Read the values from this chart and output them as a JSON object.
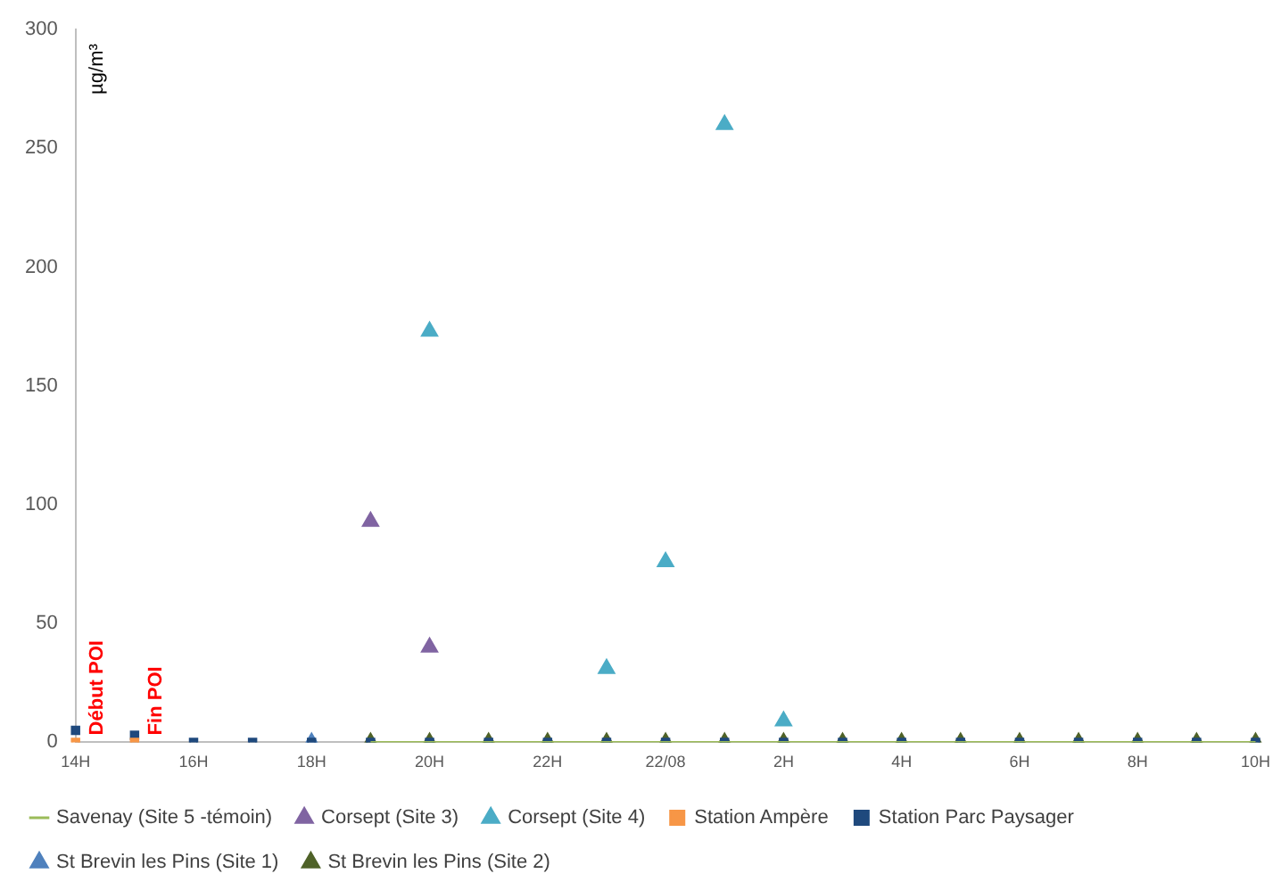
{
  "chart_data": {
    "type": "scatter",
    "ylabel": "µg/m³",
    "categories": [
      "14H",
      null,
      "16H",
      null,
      "18H",
      null,
      "20H",
      null,
      "22H",
      null,
      "22/08",
      null,
      "2H",
      null,
      "4H",
      null,
      "6H",
      null,
      "8H",
      null,
      "10H"
    ],
    "ylim": [
      0,
      300
    ],
    "yticks": [
      0,
      50,
      100,
      150,
      200,
      250,
      300
    ],
    "grid": false,
    "legend": "bottom",
    "annotations": [
      "Début POI",
      "Fin POI"
    ],
    "series": [
      {
        "name": "Savenay (Site 5 -témoin)",
        "type": "line",
        "marker": "none",
        "color": "#9bbb59",
        "values": [
          null,
          null,
          null,
          null,
          null,
          0,
          0,
          0,
          0,
          0,
          0,
          0,
          0,
          0,
          0,
          0,
          0,
          0,
          0,
          0,
          0
        ]
      },
      {
        "name": "Corsept (Site 3)",
        "marker": "triangle",
        "color": "#8064a2",
        "values": [
          null,
          null,
          null,
          null,
          null,
          93,
          40,
          null,
          null,
          null,
          null,
          null,
          null,
          null,
          null,
          null,
          null,
          null,
          null,
          null,
          null
        ]
      },
      {
        "name": "Corsept (Site 4)",
        "marker": "triangle",
        "color": "#4bacc6",
        "values": [
          null,
          null,
          null,
          null,
          null,
          null,
          173,
          null,
          null,
          31,
          76,
          260,
          9,
          null,
          null,
          null,
          null,
          null,
          null,
          null,
          null
        ]
      },
      {
        "name": "Station Ampère",
        "marker": "square",
        "color": "#f79646",
        "values": [
          0,
          0,
          null,
          null,
          null,
          null,
          null,
          null,
          null,
          null,
          null,
          null,
          null,
          null,
          null,
          null,
          null,
          null,
          null,
          null,
          null
        ]
      },
      {
        "name": "Station Parc Paysager",
        "marker": "square",
        "color": "#1f497d",
        "values": [
          5,
          3,
          0,
          0,
          0,
          0,
          0,
          0,
          0,
          0,
          0,
          0,
          0,
          0,
          0,
          0,
          0,
          0,
          0,
          0,
          0
        ]
      },
      {
        "name": "St Brevin les Pins (Site 1)",
        "marker": "triangle",
        "color": "#4f81bd",
        "values": [
          null,
          null,
          null,
          null,
          0,
          null,
          null,
          null,
          null,
          null,
          null,
          null,
          null,
          null,
          null,
          null,
          null,
          null,
          null,
          null,
          null
        ]
      },
      {
        "name": "St Brevin les Pins (Site 2)",
        "marker": "triangle",
        "color": "#4f6228",
        "values": [
          null,
          null,
          null,
          null,
          null,
          0,
          0,
          0,
          0,
          0,
          0,
          0,
          0,
          0,
          0,
          0,
          0,
          0,
          0,
          0,
          0
        ]
      }
    ]
  }
}
